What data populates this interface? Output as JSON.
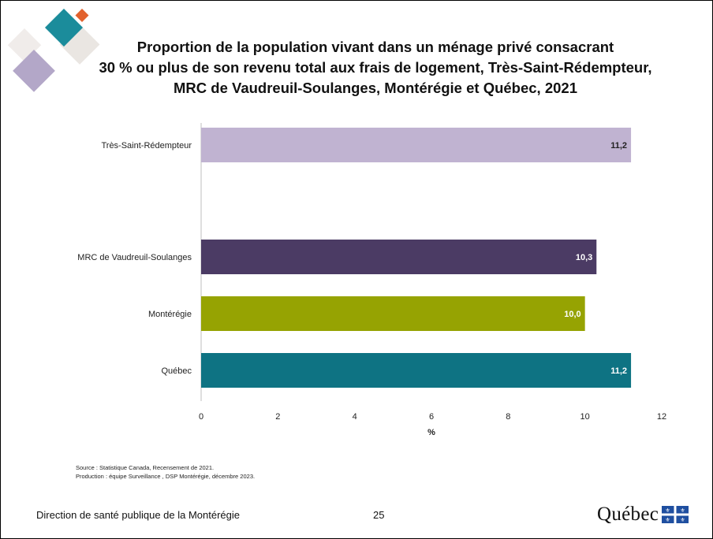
{
  "title": "Proportion de la population vivant dans un ménage privé consacrant\n30 % ou plus de son revenu total aux frais de logement, Très-Saint-Rédempteur,\nMRC de Vaudreuil-Soulanges, Montérégie et Québec, 2021",
  "chart_data": {
    "type": "bar",
    "orientation": "horizontal",
    "categories": [
      "Très-Saint-Rédempteur",
      "MRC de Vaudreuil-Soulanges",
      "Montérégie",
      "Québec"
    ],
    "values": [
      11.2,
      10.3,
      10.0,
      11.2
    ],
    "value_labels": [
      "11,2",
      "10,3",
      "10,0",
      "11,2"
    ],
    "colors": [
      "#c0b3d1",
      "#4b3b64",
      "#96a302",
      "#0e7383"
    ],
    "label_colors": [
      "#222222",
      "#ffffff",
      "#ffffff",
      "#ffffff"
    ],
    "xlabel": "%",
    "ylabel": "",
    "xlim": [
      0,
      12
    ],
    "xticks": [
      0,
      2,
      4,
      6,
      8,
      10,
      12
    ],
    "grid": false,
    "legend": "none"
  },
  "source_lines": [
    "Source : Statistique Canada, Recensement de 2021.",
    "Production : équipe Surveillance , DSP Montérégie, décembre 2023."
  ],
  "footer": {
    "organization": "Direction de santé publique de la Montérégie",
    "page_number": "25",
    "logo_text": "Québec"
  }
}
